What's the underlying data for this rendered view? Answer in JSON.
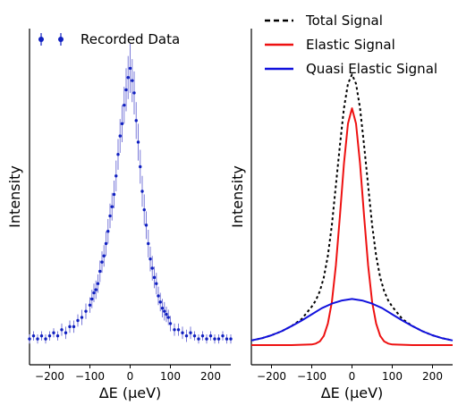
{
  "chart_data": [
    {
      "type": "scatter",
      "xlabel": "ΔE (μeV)",
      "ylabel": "Intensity",
      "xlim": [
        -250,
        250
      ],
      "x_ticks": [
        "−200",
        "−100",
        "0",
        "100",
        "200"
      ],
      "x_tick_values": [
        -200,
        -100,
        0,
        100,
        200
      ],
      "ylim": [
        0,
        1.0
      ],
      "y_ticks_shown": false,
      "grid": false,
      "legend": {
        "placement": "top-left",
        "entries": [
          {
            "label": "Recorded Data",
            "color": "#1020c0"
          }
        ]
      },
      "series": [
        {
          "name": "Recorded Data",
          "color": "#1020c0",
          "errorbar_color": "#7a7ad8",
          "x": [
            -250,
            -240,
            -230,
            -220,
            -210,
            -200,
            -190,
            -180,
            -170,
            -160,
            -150,
            -140,
            -130,
            -120,
            -110,
            -100,
            -95,
            -90,
            -85,
            -80,
            -75,
            -70,
            -65,
            -60,
            -55,
            -50,
            -45,
            -40,
            -35,
            -30,
            -25,
            -20,
            -15,
            -10,
            -5,
            0,
            5,
            10,
            15,
            20,
            25,
            30,
            35,
            40,
            45,
            50,
            55,
            60,
            65,
            70,
            75,
            80,
            85,
            90,
            95,
            100,
            110,
            120,
            130,
            140,
            150,
            160,
            170,
            180,
            190,
            200,
            210,
            220,
            230,
            240,
            250
          ],
          "y": [
            0.02,
            0.03,
            0.02,
            0.03,
            0.02,
            0.03,
            0.04,
            0.03,
            0.05,
            0.04,
            0.06,
            0.06,
            0.08,
            0.09,
            0.11,
            0.13,
            0.15,
            0.17,
            0.18,
            0.2,
            0.24,
            0.27,
            0.29,
            0.33,
            0.37,
            0.42,
            0.45,
            0.49,
            0.55,
            0.62,
            0.68,
            0.72,
            0.78,
            0.83,
            0.87,
            0.9,
            0.86,
            0.82,
            0.73,
            0.66,
            0.58,
            0.5,
            0.44,
            0.39,
            0.33,
            0.28,
            0.25,
            0.22,
            0.2,
            0.16,
            0.14,
            0.12,
            0.11,
            0.1,
            0.09,
            0.07,
            0.05,
            0.05,
            0.04,
            0.03,
            0.04,
            0.03,
            0.02,
            0.03,
            0.02,
            0.03,
            0.02,
            0.02,
            0.03,
            0.02,
            0.02
          ],
          "yerr": [
            0.015,
            0.015,
            0.015,
            0.015,
            0.015,
            0.015,
            0.015,
            0.015,
            0.02,
            0.02,
            0.02,
            0.02,
            0.02,
            0.025,
            0.025,
            0.025,
            0.03,
            0.03,
            0.03,
            0.03,
            0.035,
            0.035,
            0.035,
            0.04,
            0.04,
            0.04,
            0.045,
            0.045,
            0.05,
            0.05,
            0.055,
            0.06,
            0.06,
            0.07,
            0.07,
            0.08,
            0.07,
            0.07,
            0.06,
            0.06,
            0.055,
            0.05,
            0.05,
            0.045,
            0.045,
            0.04,
            0.04,
            0.035,
            0.035,
            0.03,
            0.03,
            0.03,
            0.03,
            0.025,
            0.025,
            0.025,
            0.02,
            0.02,
            0.02,
            0.02,
            0.02,
            0.015,
            0.015,
            0.015,
            0.015,
            0.015,
            0.015,
            0.015,
            0.015,
            0.015,
            0.015
          ]
        }
      ]
    },
    {
      "type": "line",
      "xlabel": "ΔE (μeV)",
      "ylabel": "Intensity",
      "xlim": [
        -250,
        250
      ],
      "x_ticks": [
        "−200",
        "−100",
        "0",
        "100",
        "200"
      ],
      "x_tick_values": [
        -200,
        -100,
        0,
        100,
        200
      ],
      "ylim": [
        0,
        1.0
      ],
      "y_ticks_shown": false,
      "grid": false,
      "legend": {
        "placement": "top-left",
        "entries": [
          {
            "label": "Total Signal",
            "color": "#000000",
            "style": "dashed"
          },
          {
            "label": "Elastic Signal",
            "color": "#ee1111",
            "style": "solid"
          },
          {
            "label": "Quasi Elastic Signal",
            "color": "#1111dd",
            "style": "solid"
          }
        ]
      },
      "series": [
        {
          "name": "Total Signal",
          "color": "#000000",
          "style": "dashed",
          "x": [
            -250,
            -225,
            -200,
            -175,
            -150,
            -125,
            -100,
            -90,
            -80,
            -70,
            -60,
            -50,
            -40,
            -30,
            -20,
            -10,
            0,
            10,
            20,
            30,
            40,
            50,
            60,
            70,
            80,
            90,
            100,
            125,
            150,
            175,
            200,
            225,
            250
          ],
          "y": [
            0.015,
            0.022,
            0.032,
            0.045,
            0.062,
            0.085,
            0.125,
            0.145,
            0.175,
            0.22,
            0.29,
            0.39,
            0.52,
            0.65,
            0.77,
            0.85,
            0.88,
            0.85,
            0.77,
            0.65,
            0.52,
            0.39,
            0.29,
            0.22,
            0.175,
            0.145,
            0.125,
            0.085,
            0.062,
            0.045,
            0.032,
            0.022,
            0.015
          ]
        },
        {
          "name": "Elastic Signal",
          "color": "#ee1111",
          "style": "solid",
          "x": [
            -250,
            -150,
            -100,
            -90,
            -80,
            -70,
            -60,
            -50,
            -40,
            -30,
            -20,
            -10,
            0,
            10,
            20,
            30,
            40,
            50,
            60,
            70,
            80,
            90,
            100,
            150,
            250
          ],
          "y": [
            0.0,
            0.0,
            0.002,
            0.005,
            0.012,
            0.03,
            0.07,
            0.14,
            0.26,
            0.42,
            0.59,
            0.72,
            0.77,
            0.72,
            0.59,
            0.42,
            0.26,
            0.14,
            0.07,
            0.03,
            0.012,
            0.005,
            0.002,
            0.0,
            0.0
          ]
        },
        {
          "name": "Quasi Elastic Signal",
          "color": "#1111dd",
          "style": "solid",
          "x": [
            -250,
            -225,
            -200,
            -175,
            -150,
            -125,
            -100,
            -75,
            -50,
            -25,
            0,
            25,
            50,
            75,
            100,
            125,
            150,
            175,
            200,
            225,
            250
          ],
          "y": [
            0.015,
            0.022,
            0.032,
            0.045,
            0.062,
            0.08,
            0.1,
            0.12,
            0.135,
            0.145,
            0.15,
            0.145,
            0.135,
            0.12,
            0.1,
            0.08,
            0.062,
            0.045,
            0.032,
            0.022,
            0.015
          ]
        }
      ]
    }
  ]
}
